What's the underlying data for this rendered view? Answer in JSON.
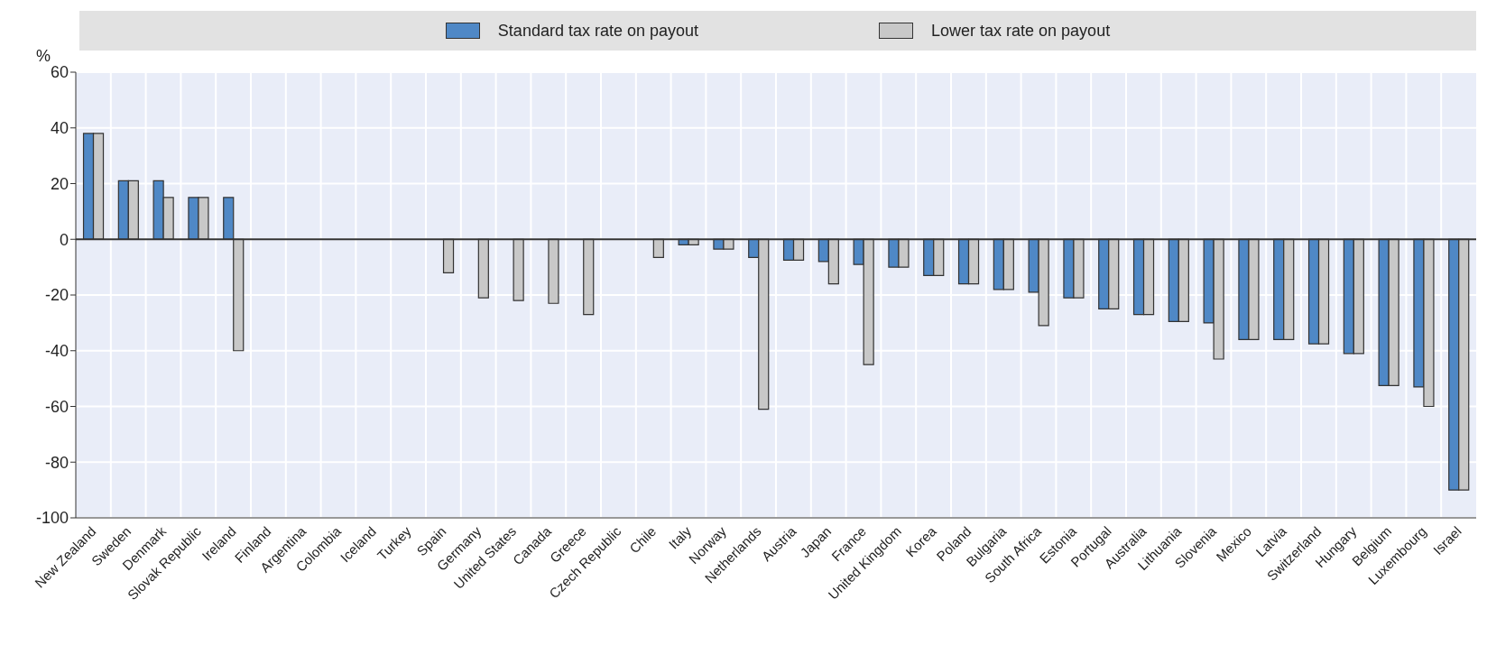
{
  "chart_data": {
    "type": "bar",
    "ylabel": "%",
    "categories": [
      "New Zealand",
      "Sweden",
      "Denmark",
      "Slovak Republic",
      "Ireland",
      "Finland",
      "Argentina",
      "Colombia",
      "Iceland",
      "Turkey",
      "Spain",
      "Germany",
      "United States",
      "Canada",
      "Greece",
      "Czech Republic",
      "Chile",
      "Italy",
      "Norway",
      "Netherlands",
      "Austria",
      "Japan",
      "France",
      "United Kingdom",
      "Korea",
      "Poland",
      "Bulgaria",
      "South Africa",
      "Estonia",
      "Portugal",
      "Australia",
      "Lithuania",
      "Slovenia",
      "Mexico",
      "Latvia",
      "Switzerland",
      "Hungary",
      "Belgium",
      "Luxembourg",
      "Israel"
    ],
    "series": [
      {
        "name": "Standard tax rate on payout",
        "color": "#4f88c6",
        "values": [
          38,
          21,
          21,
          15,
          15,
          null,
          null,
          null,
          null,
          null,
          null,
          null,
          null,
          null,
          null,
          null,
          null,
          -2,
          -3.5,
          -6.5,
          -7.5,
          -8,
          -9,
          -10,
          -13,
          -16,
          -18,
          -19,
          -21,
          -25,
          -27,
          -29.5,
          -30,
          -36,
          -36,
          -37.5,
          -41,
          -52.5,
          -53,
          -90
        ]
      },
      {
        "name": "Lower tax rate on payout",
        "color": "#c8c8c8",
        "values": [
          38,
          21,
          15,
          15,
          -40,
          null,
          null,
          null,
          null,
          null,
          -12,
          -21,
          -22,
          -23,
          -27,
          null,
          -6.5,
          -2,
          -3.5,
          -61,
          -7.5,
          -16,
          -45,
          -10,
          -13,
          -16,
          -18,
          -31,
          -21,
          -25,
          -27,
          -29.5,
          -43,
          -36,
          -36,
          -37.5,
          -41,
          -52.5,
          -60,
          -90
        ]
      }
    ],
    "ylim": [
      -100,
      60
    ],
    "yticks": [
      -100,
      -80,
      -60,
      -40,
      -20,
      0,
      20,
      40,
      60
    ],
    "ref_lines": [
      {
        "axis": "y",
        "value": 0,
        "color": "#333333"
      }
    ],
    "grid": true,
    "legend": "top"
  }
}
